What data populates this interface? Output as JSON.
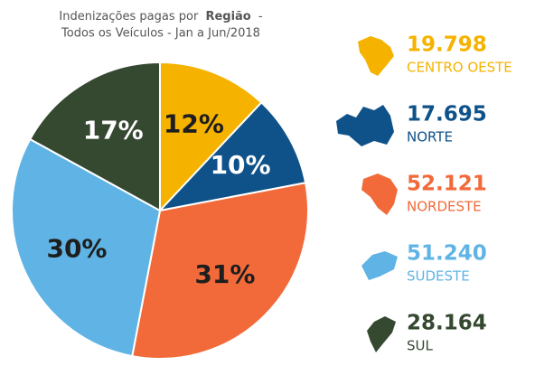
{
  "chart_data": {
    "type": "pie",
    "title_line1": [
      "Indenizações pagas por",
      "Região",
      "-"
    ],
    "title_line2": "Todos os Veículos - Jan a Jun/2018",
    "categories": [
      "CENTRO OESTE",
      "NORTE",
      "NORDESTE",
      "SUDESTE",
      "SUL"
    ],
    "colors": [
      "#f5b300",
      "#0e5289",
      "#f26a3a",
      "#5fb4e5",
      "#354830"
    ],
    "values": [
      12,
      10,
      31,
      30,
      17
    ],
    "value_labels": [
      "12%",
      "10%",
      "31%",
      "30%",
      "17%"
    ],
    "value_label_colors": [
      "#1e1e1e",
      "#ffffff",
      "#1e1e1e",
      "#1e1e1e",
      "#ffffff"
    ],
    "counts": [
      19798,
      17695,
      52121,
      51240,
      28164
    ],
    "count_labels": [
      "19.798",
      "17.695",
      "52.121",
      "51.240",
      "28.164"
    ]
  }
}
